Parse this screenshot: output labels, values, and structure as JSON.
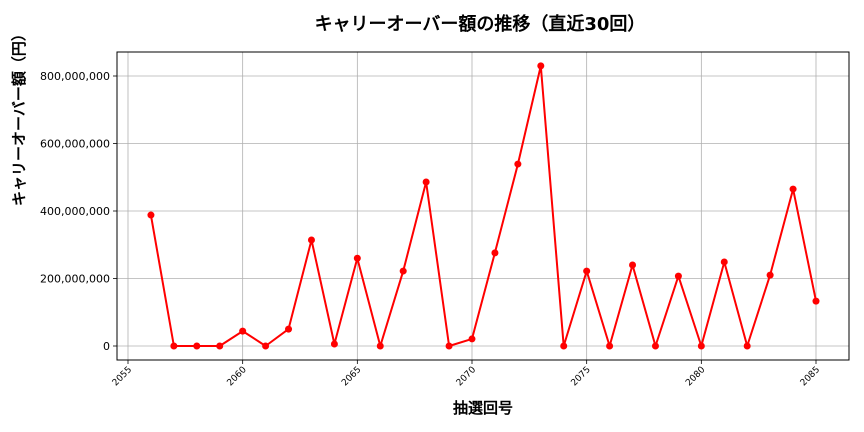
{
  "chart_data": {
    "type": "line",
    "title": "キャリーオーバー額の推移（直近30回）",
    "xlabel": "抽選回号",
    "ylabel": "キャリーオーバー額（円）",
    "x": [
      2056,
      2057,
      2058,
      2059,
      2060,
      2061,
      2062,
      2063,
      2064,
      2065,
      2066,
      2067,
      2068,
      2069,
      2070,
      2071,
      2072,
      2073,
      2074,
      2075,
      2076,
      2077,
      2078,
      2079,
      2080,
      2081,
      2082,
      2083,
      2084,
      2085
    ],
    "series": [
      {
        "name": "キャリーオーバー額",
        "color": "#ff0000",
        "marker": "circle",
        "values": [
          388000000,
          0,
          0,
          0,
          44000000,
          0,
          50000000,
          314000000,
          6000000,
          260000000,
          0,
          222000000,
          486000000,
          0,
          21000000,
          276000000,
          539000000,
          830000000,
          0,
          222000000,
          0,
          240000000,
          0,
          207000000,
          0,
          249000000,
          0,
          210000000,
          465000000,
          133000000
        ]
      }
    ],
    "xticks": [
      2055,
      2060,
      2065,
      2070,
      2075,
      2080,
      2085
    ],
    "yticks": [
      0,
      200000000,
      400000000,
      600000000,
      800000000
    ],
    "ytick_labels": [
      "0",
      "200,000,000",
      "400,000,000",
      "600,000,000",
      "800,000,000"
    ],
    "xlim": [
      2054.5,
      2086.5
    ],
    "ylim": [
      -41000000,
      870000000
    ],
    "grid": true,
    "legend": "none"
  }
}
